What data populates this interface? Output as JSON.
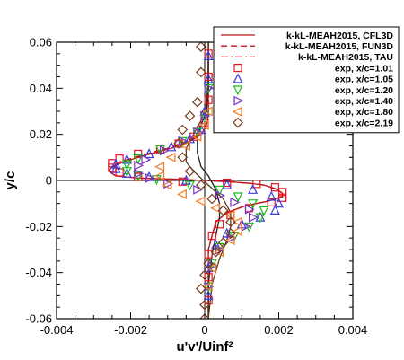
{
  "chart_data": {
    "type": "scatter",
    "xlabel": "u'v'/Uinf²",
    "ylabel": "y/c",
    "xlim": [
      -0.004,
      0.004
    ],
    "ylim": [
      -0.06,
      0.06
    ],
    "x_ticks": [
      -0.004,
      -0.002,
      0,
      0.002,
      0.004
    ],
    "x_tick_labels": [
      "-0.004",
      "-0.002",
      "0",
      "0.002",
      "0.004"
    ],
    "y_ticks": [
      -0.06,
      -0.04,
      -0.02,
      0,
      0.02,
      0.04,
      0.06
    ],
    "y_tick_labels": [
      "-0.06",
      "-0.04",
      "-0.02",
      "0",
      "0.02",
      "0.04",
      "0.06"
    ],
    "legend_position": "top-right",
    "lines": [
      {
        "name": "k-kL-MEAH2015, CFL3D",
        "style": "solid",
        "color": "#c0161b",
        "x": [
          0.0001,
          0.0001,
          0.0001,
          8e-05,
          3e-05,
          -0.0001,
          -0.0004,
          -0.0009,
          -0.0016,
          -0.0022,
          -0.0025,
          -0.0026,
          -0.0024,
          -0.0018,
          -0.0008,
          0,
          0.0006,
          0.0012,
          0.0016,
          0.0019,
          0.0021,
          0.0021,
          0.0017,
          0.0011,
          0.0006,
          0.0003,
          0.0002,
          0.0001,
          0.0001,
          0.0001,
          0.0001
        ],
        "y": [
          0.06,
          0.04,
          0.03,
          0.026,
          0.023,
          0.02,
          0.017,
          0.014,
          0.011,
          0.008,
          0.006,
          0.004,
          0.002,
          0.001,
          0.0005,
          0,
          -0.0005,
          -0.0012,
          -0.002,
          -0.0035,
          -0.0055,
          -0.007,
          -0.009,
          -0.011,
          -0.014,
          -0.018,
          -0.024,
          -0.03,
          -0.04,
          -0.05,
          -0.06
        ]
      },
      {
        "name": "k-kL-MEAH2015, FUN3D",
        "style": "dashed",
        "color": "#c0161b",
        "x": [
          0.0001,
          0.0001,
          0.0001,
          7e-05,
          2e-05,
          -0.0001,
          -0.0005,
          -0.001,
          -0.0017,
          -0.0023,
          -0.0025,
          -0.0026,
          -0.0024,
          -0.0017,
          -0.0007,
          0,
          0.0006,
          0.0012,
          0.0016,
          0.0019,
          0.0021,
          0.0021,
          0.0017,
          0.0011,
          0.0006,
          0.0003,
          0.0002,
          0.0001,
          0.0001,
          0.0001,
          0.0001
        ],
        "y": [
          0.06,
          0.04,
          0.03,
          0.026,
          0.023,
          0.02,
          0.017,
          0.014,
          0.011,
          0.008,
          0.006,
          0.004,
          0.002,
          0.001,
          0.0005,
          0,
          -0.0005,
          -0.0012,
          -0.002,
          -0.0035,
          -0.0055,
          -0.007,
          -0.009,
          -0.011,
          -0.014,
          -0.018,
          -0.024,
          -0.03,
          -0.04,
          -0.05,
          -0.06
        ]
      },
      {
        "name": "k-kL-MEAH2015, TAU",
        "style": "dashdot",
        "color": "#c0161b",
        "x": [
          0.0001,
          0.0001,
          0.0001,
          8e-05,
          3e-05,
          -0.0001,
          -0.0004,
          -0.0009,
          -0.0016,
          -0.0022,
          -0.0025,
          -0.0026,
          -0.0024,
          -0.0018,
          -0.0008,
          0,
          0.0006,
          0.0012,
          0.0016,
          0.0019,
          0.0021,
          0.0021,
          0.0017,
          0.0011,
          0.0006,
          0.0003,
          0.0002,
          0.0001,
          0.0001,
          0.0001,
          0.0001
        ],
        "y": [
          0.06,
          0.04,
          0.03,
          0.026,
          0.023,
          0.02,
          0.017,
          0.014,
          0.011,
          0.008,
          0.006,
          0.004,
          0.002,
          0.001,
          0.0005,
          0,
          -0.0005,
          -0.0012,
          -0.002,
          -0.0035,
          -0.0055,
          -0.007,
          -0.009,
          -0.011,
          -0.014,
          -0.018,
          -0.024,
          -0.03,
          -0.04,
          -0.05,
          -0.06
        ]
      },
      {
        "name": "",
        "style": "solid",
        "color": "#1e1e1e",
        "x": [
          0.0001,
          0.0001,
          5e-05,
          -0.0001,
          -0.0002,
          -0.0002,
          -0.0001,
          0.0001,
          0.0003,
          0.0004,
          0.0004,
          0.0003,
          0.0002,
          0.0001,
          0.0001
        ],
        "y": [
          0.06,
          0.04,
          0.03,
          0.024,
          0.018,
          0.012,
          0.006,
          0.002,
          -0.004,
          -0.01,
          -0.016,
          -0.024,
          -0.032,
          -0.045,
          -0.06
        ]
      },
      {
        "name": "",
        "style": "solid",
        "color": "#5a3a1a",
        "x": [
          0.0001,
          8e-05,
          3e-05,
          -0.0001,
          -0.0003,
          -0.0005,
          -0.0005,
          -0.0003,
          0.0001,
          0.0005,
          0.0007,
          0.0007,
          0.0006,
          0.0004,
          0.0002,
          0.0001
        ],
        "y": [
          0.06,
          0.04,
          0.032,
          0.026,
          0.02,
          0.014,
          0.008,
          0.004,
          -0.002,
          -0.008,
          -0.014,
          -0.02,
          -0.026,
          -0.034,
          -0.045,
          -0.06
        ]
      }
    ],
    "series": [
      {
        "name": "exp, x/c=1.01",
        "marker": "square",
        "color": "#e8141e",
        "x": [
          0.0001,
          0.0001,
          0.0001,
          0.0,
          -0.0001,
          -0.0003,
          -0.0007,
          -0.0012,
          -0.0018,
          -0.0023,
          -0.0025,
          -0.0025,
          -0.0023,
          -0.0018,
          -0.0006,
          0.0006,
          0.0014,
          0.0019,
          0.0021,
          0.0021,
          0.0018,
          0.0012,
          0.0007,
          0.0004,
          0.0002,
          0.0001,
          0.0001,
          0.0001
        ],
        "y": [
          0.055,
          0.045,
          0.035,
          0.025,
          0.022,
          0.019,
          0.016,
          0.0135,
          0.0115,
          0.0095,
          0.0075,
          0.0055,
          0.0035,
          0.0015,
          -0.0005,
          -0.001,
          -0.0015,
          -0.003,
          -0.005,
          -0.0075,
          -0.0095,
          -0.012,
          -0.015,
          -0.019,
          -0.024,
          -0.032,
          -0.042,
          -0.052
        ]
      },
      {
        "name": "exp, x/c=1.05",
        "marker": "triangle-up",
        "color": "#3a3ae0",
        "x": [
          0.0001,
          0.0001,
          0.0,
          -0.0001,
          -0.0004,
          -0.0009,
          -0.0015,
          -0.0021,
          -0.0024,
          -0.0024,
          -0.0021,
          -0.0015,
          -0.0005,
          0.0006,
          0.0013,
          0.0018,
          0.002,
          0.0019,
          0.0015,
          0.001,
          0.0006,
          0.0003,
          0.0001,
          0.0001
        ],
        "y": [
          0.054,
          0.044,
          0.03,
          0.022,
          0.018,
          0.0145,
          0.0115,
          0.009,
          0.007,
          0.005,
          0.003,
          0.0015,
          0.0,
          -0.002,
          -0.004,
          -0.007,
          -0.01,
          -0.013,
          -0.016,
          -0.019,
          -0.023,
          -0.028,
          -0.038,
          -0.05
        ]
      },
      {
        "name": "exp, x/c=1.20",
        "marker": "triangle-down",
        "color": "#1cb81c",
        "x": [
          0.0001,
          0.0,
          -0.0002,
          -0.0006,
          -0.0012,
          -0.0018,
          -0.0021,
          -0.0021,
          -0.0018,
          -0.0013,
          -0.0004,
          0.0004,
          0.0009,
          0.0013,
          0.0016,
          0.0015,
          0.0012,
          0.0008,
          0.0004,
          0.0002,
          0.0001
        ],
        "y": [
          0.04,
          0.028,
          0.021,
          0.017,
          0.0135,
          0.0095,
          0.007,
          0.004,
          0.002,
          0.0005,
          -0.002,
          -0.004,
          -0.007,
          -0.01,
          -0.013,
          -0.016,
          -0.02,
          -0.024,
          -0.029,
          -0.036,
          -0.046
        ]
      },
      {
        "name": "exp, x/c=1.40",
        "marker": "triangle-right",
        "color": "#7a30c8",
        "x": [
          0.0001,
          0.0,
          -0.0002,
          -0.0006,
          -0.0011,
          -0.0016,
          -0.0018,
          -0.0018,
          -0.0015,
          -0.001,
          -0.0002,
          0.0004,
          0.0008,
          0.0012,
          0.0013,
          0.0011,
          0.0007,
          0.0004,
          0.0002,
          0.0001
        ],
        "y": [
          0.04,
          0.028,
          0.021,
          0.017,
          0.013,
          0.009,
          0.0065,
          0.003,
          0.001,
          -0.0015,
          -0.004,
          -0.0065,
          -0.0095,
          -0.0125,
          -0.016,
          -0.02,
          -0.025,
          -0.03,
          -0.037,
          -0.046
        ]
      },
      {
        "name": "exp, x/c=1.80",
        "marker": "triangle-left",
        "color": "#f07820",
        "x": [
          0.0001,
          0.0,
          -0.0002,
          -0.0005,
          -0.0009,
          -0.0012,
          -0.0012,
          -0.001,
          -0.0006,
          -0.0001,
          0.0003,
          0.0007,
          0.0009,
          0.0009,
          0.0007,
          0.0004,
          0.0002,
          0.0001
        ],
        "y": [
          0.03,
          0.024,
          0.019,
          0.015,
          0.01,
          0.006,
          0.002,
          -0.002,
          -0.006,
          -0.009,
          -0.012,
          -0.015,
          -0.018,
          -0.022,
          -0.026,
          -0.031,
          -0.038,
          -0.046
        ]
      },
      {
        "name": "exp, x/c=2.19",
        "marker": "diamond",
        "color": "#7a3a18",
        "x": [
          -0.0001,
          -0.0001,
          -0.0002,
          -0.0004,
          -0.0006,
          -0.0007,
          -0.0006,
          -0.0004,
          -0.0001,
          0.0002,
          0.0005,
          0.0007,
          0.0007,
          0.0005,
          0.0003,
          0.0001,
          0.0,
          -0.0001,
          0.0,
          0.0
        ],
        "y": [
          0.058,
          0.047,
          0.034,
          0.028,
          0.022,
          0.016,
          0.01,
          0.004,
          -0.002,
          -0.008,
          -0.013,
          -0.018,
          -0.023,
          -0.027,
          -0.031,
          -0.036,
          -0.041,
          -0.047,
          -0.054,
          -0.06
        ]
      }
    ]
  }
}
